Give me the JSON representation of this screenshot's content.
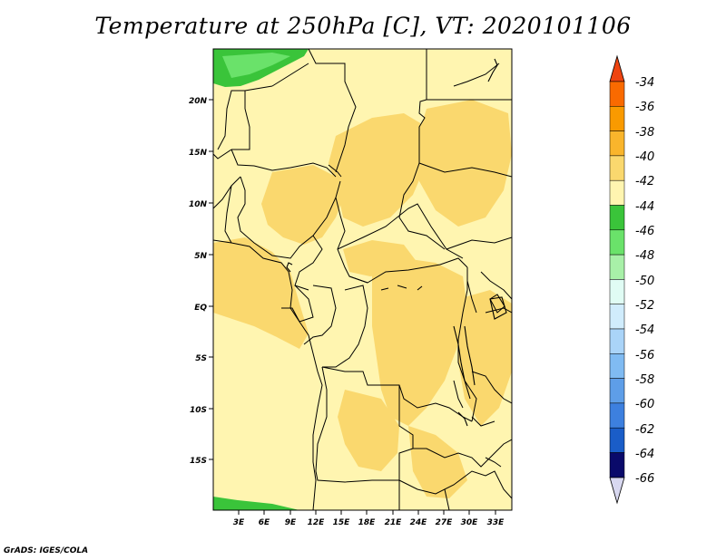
{
  "title": "Temperature at 250hPa [C], VT: 2020101106",
  "credit": "GrADS: IGES/COLA",
  "map": {
    "lat_labels": [
      "20N",
      "15N",
      "10N",
      "5N",
      "EQ",
      "5S",
      "10S",
      "15S"
    ],
    "lon_labels": [
      "3E",
      "6E",
      "9E",
      "12E",
      "15E",
      "18E",
      "21E",
      "24E",
      "27E",
      "30E",
      "33E"
    ]
  },
  "colorbar": {
    "labels": [
      "-34",
      "-36",
      "-38",
      "-40",
      "-42",
      "-44",
      "-46",
      "-48",
      "-50",
      "-52",
      "-54",
      "-56",
      "-58",
      "-60",
      "-62",
      "-64",
      "-66"
    ],
    "colors": {
      "top_arrow": "#ee4411",
      "c1": "#f96a00",
      "c2": "#f99a00",
      "c3": "#f9b52c",
      "c4": "#fad86e",
      "c5": "#fff5b0",
      "c6": "#3ac43a",
      "c7": "#6ae26a",
      "c8": "#a8f0a8",
      "c9": "#e0fcf4",
      "c10": "#d0ecfc",
      "c11": "#aad4f8",
      "c12": "#80bbf2",
      "c13": "#5e9ee8",
      "c14": "#3d80df",
      "c15": "#1a5dc8",
      "c16": "#0c3aa0",
      "bottom_arrow": "#d8d8f0",
      "low_end": "#0a0a6a"
    }
  }
}
